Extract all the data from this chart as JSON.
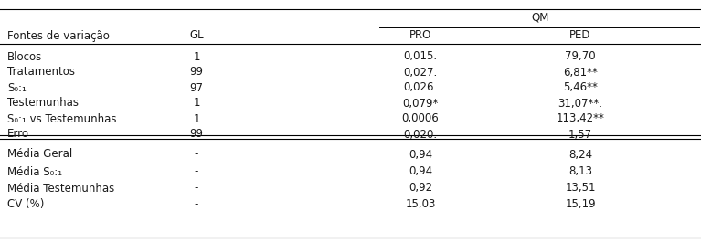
{
  "rows": [
    [
      "Blocos",
      "1",
      "0,015.",
      "79,70"
    ],
    [
      "Tratamentos",
      "99",
      "0,027.",
      "6,81**"
    ],
    [
      "S₀:₁",
      "97",
      "0,026.",
      "5,46**"
    ],
    [
      "Testemunhas",
      "1",
      "0,079*",
      "31,07**."
    ],
    [
      "S₀:₁ vs.Testemunhas",
      "1",
      "0,0006",
      "113,42**"
    ],
    [
      "Erro",
      "99",
      "0,020.",
      "1,57"
    ]
  ],
  "bottom_rows": [
    [
      "Média Geral",
      "-",
      "0,94",
      "8,24"
    ],
    [
      "Média S₀:₁",
      "-",
      "0,94",
      "8,13"
    ],
    [
      "Média Testemunhas",
      "-",
      "0,92",
      "13,51"
    ],
    [
      "CV (%)",
      "-",
      "15,03",
      "15,19"
    ]
  ],
  "background_color": "#ffffff",
  "text_color": "#1a1a1a",
  "font_size": 8.5
}
